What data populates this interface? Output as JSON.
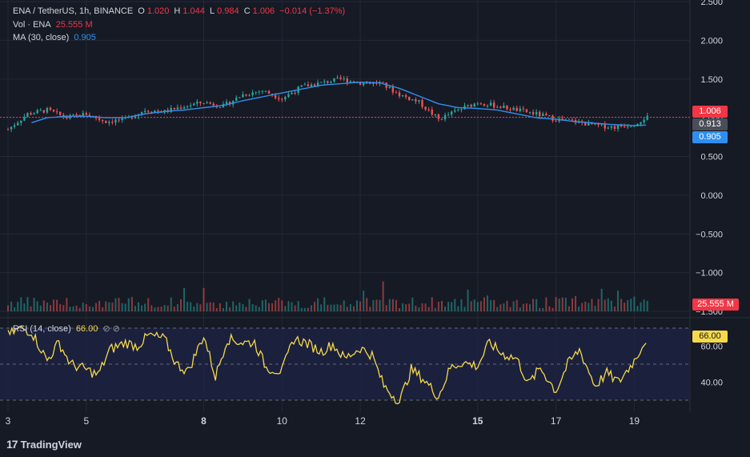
{
  "header": {
    "symbol": "ENA / TetherUS, 1h, BINANCE",
    "o_label": "O",
    "o_value": "1.020",
    "h_label": "H",
    "h_value": "1.044",
    "l_label": "L",
    "l_value": "0.984",
    "c_label": "C",
    "c_value": "1.006",
    "change": "−0.014 (−1.37%)",
    "vol_label": "Vol · ENA",
    "vol_value": "25.555 M",
    "ma_label": "MA (30, close)",
    "ma_value": "0.905",
    "rsi_label": "RSI (14, close)",
    "rsi_value": "66.00"
  },
  "price_tags": {
    "last": "1.006",
    "prev": "0.913",
    "ma": "0.905",
    "volume": "25.555 M",
    "rsi": "66.00"
  },
  "branding": {
    "logo_mark": "17",
    "logo_text": "TradingView"
  },
  "colors": {
    "background": "#161a25",
    "up": "#26a69a",
    "down": "#ef5350",
    "ma": "#2f8ff0",
    "rsi": "#f5d94a",
    "rsi_band": "#1e2346",
    "last_price": "#f23645",
    "grid": "#232838"
  },
  "chart_data": [
    {
      "type": "candlestick",
      "title": "ENA / TetherUS, 1h, BINANCE",
      "x_ticks": [
        "3",
        "5",
        "8",
        "10",
        "12",
        "15",
        "17",
        "19"
      ],
      "y_ticks": [
        "2.500",
        "2.000",
        "1.500",
        "1.000",
        "0.500",
        "0.000",
        "−0.500",
        "−1.000",
        "−1.500"
      ],
      "ylim": [
        -1.5,
        2.5
      ],
      "x_days": [
        3,
        3.5,
        4,
        4.5,
        5,
        5.5,
        6,
        6.5,
        7,
        7.5,
        8,
        8.5,
        9,
        9.5,
        10,
        10.5,
        11,
        11.5,
        12,
        12.5,
        13,
        13.5,
        14,
        14.5,
        15,
        15.5,
        16,
        16.5,
        17,
        17.5,
        18,
        18.5,
        19,
        19.3
      ],
      "close": [
        0.85,
        1.05,
        1.1,
        1.0,
        1.05,
        0.95,
        0.98,
        1.1,
        1.08,
        1.15,
        1.2,
        1.15,
        1.3,
        1.35,
        1.25,
        1.4,
        1.45,
        1.5,
        1.45,
        1.45,
        1.3,
        1.2,
        0.98,
        1.1,
        1.2,
        1.15,
        1.1,
        1.05,
        0.98,
        0.95,
        0.9,
        0.88,
        0.92,
        1.006
      ],
      "ma_30": [
        0.8,
        0.92,
        1.0,
        1.02,
        1.02,
        1.0,
        1.0,
        1.05,
        1.08,
        1.1,
        1.13,
        1.16,
        1.22,
        1.27,
        1.32,
        1.37,
        1.42,
        1.44,
        1.46,
        1.45,
        1.38,
        1.28,
        1.18,
        1.13,
        1.12,
        1.1,
        1.05,
        1.0,
        0.98,
        0.95,
        0.93,
        0.91,
        0.9,
        0.905
      ],
      "last_price": 1.006,
      "ma_last": 0.905
    },
    {
      "type": "bar",
      "title": "Vol · ENA",
      "last_value": "25.555 M"
    },
    {
      "type": "line",
      "title": "RSI (14, close)",
      "y_ticks": [
        "60.00",
        "40.00"
      ],
      "ylim": [
        28,
        72
      ],
      "bands": [
        70,
        50,
        30
      ],
      "x_days": [
        3,
        3.3,
        3.6,
        4,
        4.3,
        4.6,
        5,
        5.3,
        5.6,
        6,
        6.3,
        6.6,
        7,
        7.3,
        7.6,
        8,
        8.3,
        8.6,
        9,
        9.3,
        9.6,
        10,
        10.3,
        10.6,
        11,
        11.3,
        11.6,
        12,
        12.3,
        12.6,
        13,
        13.3,
        13.6,
        14,
        14.3,
        14.6,
        15,
        15.3,
        15.6,
        16,
        16.3,
        16.6,
        17,
        17.3,
        17.6,
        18,
        18.3,
        18.6,
        19,
        19.35
      ],
      "values": [
        66,
        70,
        68,
        52,
        62,
        50,
        47,
        44,
        58,
        62,
        60,
        66,
        64,
        50,
        46,
        66,
        43,
        64,
        62,
        62,
        48,
        46,
        64,
        62,
        57,
        61,
        53,
        59,
        55,
        38,
        29,
        47,
        42,
        32,
        48,
        51,
        49,
        62,
        56,
        53,
        39,
        48,
        35,
        50,
        58,
        38,
        45,
        40,
        52,
        66
      ],
      "last_value": 66.0
    }
  ]
}
